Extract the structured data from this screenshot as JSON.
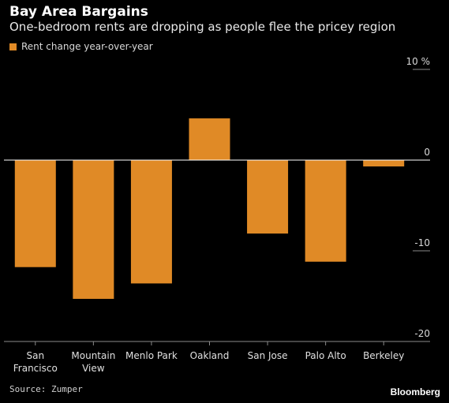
{
  "title": "Bay Area Bargains",
  "subtitle": "One-bedroom rents are dropping as people flee the pricey region",
  "source": "Source: Zumper",
  "brand": "Bloomberg",
  "colors": {
    "background": "#000000",
    "bar": "#e08a26",
    "zero_line": "#ffffff",
    "axis_line": "#8a8a8a",
    "text": "#ffffff"
  },
  "chart_data": {
    "type": "bar",
    "title": "Bay Area Bargains",
    "subtitle": "One-bedroom rents are dropping as people flee the pricey region",
    "categories": [
      "San Francisco",
      "Mountain View",
      "Menlo Park",
      "Oakland",
      "San Jose",
      "Palo Alto",
      "Berkeley"
    ],
    "category_labels": [
      [
        "San",
        "Francisco"
      ],
      [
        "Mountain",
        "View"
      ],
      [
        "Menlo Park"
      ],
      [
        "Oakland"
      ],
      [
        "San Jose"
      ],
      [
        "Palo Alto"
      ],
      [
        "Berkeley"
      ]
    ],
    "series": [
      {
        "name": "Rent change year-over-year",
        "values": [
          -11.8,
          -15.3,
          -13.6,
          4.6,
          -8.1,
          -11.2,
          -0.7
        ]
      }
    ],
    "ylim": [
      -20,
      10
    ],
    "yticks": [
      10,
      0,
      -10,
      -20
    ],
    "ytick_labels": [
      "10 %",
      "0",
      "-10",
      "-20"
    ],
    "y_axis_side": "right",
    "legend_position": "top-left"
  }
}
